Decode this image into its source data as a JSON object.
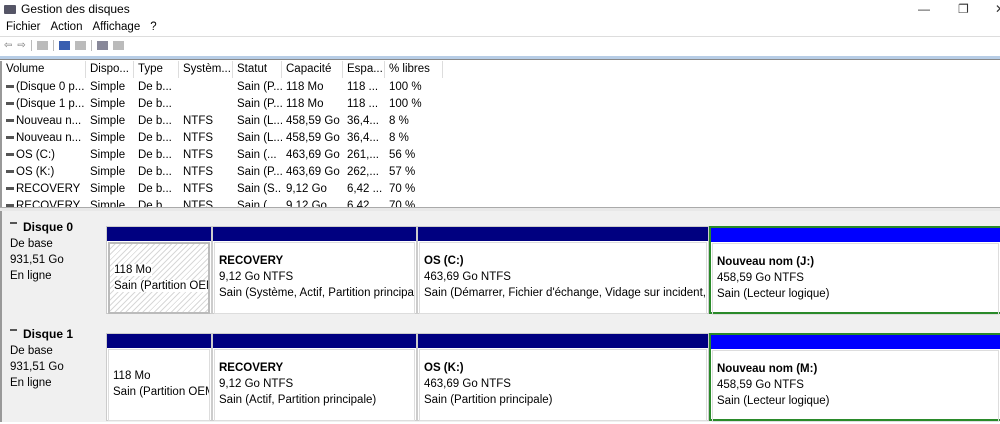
{
  "window": {
    "title": "Gestion des disques",
    "minimize": "—",
    "maximize": "❐",
    "close": "✕"
  },
  "menu": [
    "Fichier",
    "Action",
    "Affichage",
    "?"
  ],
  "toolbar": {
    "icons": [
      "back-icon",
      "forward-icon",
      "console-icon",
      "help-icon",
      "properties-icon",
      "connect-icon",
      "view-icon"
    ]
  },
  "columns": [
    "Volume",
    "Dispo...",
    "Type",
    "Systèm...",
    "Statut",
    "Capacité",
    "Espa...",
    "% libres"
  ],
  "rows": [
    [
      "(Disque 0 p...",
      "Simple",
      "De b...",
      "",
      "Sain (P...",
      "118 Mo",
      "118 ...",
      "100 %"
    ],
    [
      "(Disque 1 p...",
      "Simple",
      "De b...",
      "",
      "Sain (P...",
      "118 Mo",
      "118 ...",
      "100 %"
    ],
    [
      "Nouveau n...",
      "Simple",
      "De b...",
      "NTFS",
      "Sain (L...",
      "458,59 Go",
      "36,4...",
      "8 %"
    ],
    [
      "Nouveau n...",
      "Simple",
      "De b...",
      "NTFS",
      "Sain (L...",
      "458,59 Go",
      "36,4...",
      "8 %"
    ],
    [
      "OS (C:)",
      "Simple",
      "De b...",
      "NTFS",
      "Sain (...",
      "463,69 Go",
      "261,...",
      "56 %"
    ],
    [
      "OS (K:)",
      "Simple",
      "De b...",
      "NTFS",
      "Sain (P...",
      "463,69 Go",
      "262,...",
      "57 %"
    ],
    [
      "RECOVERY",
      "Simple",
      "De b...",
      "NTFS",
      "Sain (S...",
      "9,12 Go",
      "6,42 ...",
      "70 %"
    ],
    [
      "RECOVERY",
      "Simple",
      "De b...",
      "NTFS",
      "Sain (...",
      "9,12 Go",
      "6,42 ...",
      "70 %"
    ]
  ],
  "disks": [
    {
      "name": "Disque 0",
      "type": "De base",
      "size": "931,51 Go",
      "state": "En ligne",
      "parts": [
        {
          "title": "",
          "l1": "118 Mo",
          "l2": "Sain (Partition OEM"
        },
        {
          "title": "RECOVERY",
          "l1": "9,12 Go NTFS",
          "l2": "Sain (Système, Actif, Partition principale"
        },
        {
          "title": "OS  (C:)",
          "l1": "463,69 Go NTFS",
          "l2": "Sain (Démarrer, Fichier d'échange, Vidage sur incident, P"
        },
        {
          "title": "Nouveau nom  (J:)",
          "l1": "458,59 Go NTFS",
          "l2": "Sain (Lecteur logique)"
        }
      ]
    },
    {
      "name": "Disque 1",
      "type": "De base",
      "size": "931,51 Go",
      "state": "En ligne",
      "parts": [
        {
          "title": "",
          "l1": "118 Mo",
          "l2": "Sain (Partition OEM"
        },
        {
          "title": "RECOVERY",
          "l1": "9,12 Go NTFS",
          "l2": "Sain (Actif, Partition principale)"
        },
        {
          "title": "OS  (K:)",
          "l1": "463,69 Go NTFS",
          "l2": "Sain (Partition principale)"
        },
        {
          "title": "Nouveau nom  (M:)",
          "l1": "458,59 Go NTFS",
          "l2": "Sain (Lecteur logique)"
        }
      ]
    }
  ],
  "colors": {
    "primary_partition": "#000080",
    "logical_drive": "#0000ff",
    "extended_border": "#2a8a2a"
  }
}
